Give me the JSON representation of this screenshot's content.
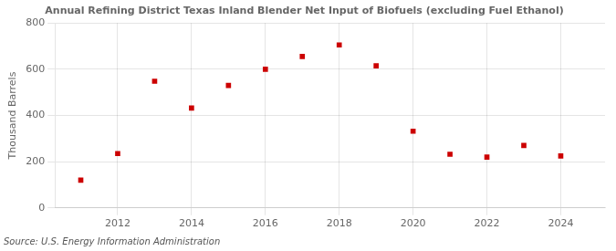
{
  "chart_data": {
    "type": "scatter",
    "title": "Annual Refining District Texas Inland Blender Net Input of Biofuels (excluding Fuel Ethanol)",
    "ylabel": "Thousand Barrels",
    "annotation": "Source: U.S. Energy Information Administration",
    "x": [
      2011,
      2012,
      2013,
      2014,
      2015,
      2016,
      2017,
      2018,
      2019,
      2020,
      2021,
      2022,
      2023,
      2024
    ],
    "values": [
      120,
      235,
      548,
      432,
      530,
      600,
      655,
      705,
      615,
      332,
      232,
      220,
      270,
      225
    ],
    "color": "#cc0000",
    "marker": "square",
    "xlim": [
      2010.3,
      2025.2
    ],
    "xticks": [
      2012,
      2014,
      2016,
      2018,
      2020,
      2022,
      2024
    ],
    "ylim": [
      0,
      800
    ],
    "yticks": [
      0,
      200,
      400,
      600,
      800
    ],
    "grid": true
  }
}
